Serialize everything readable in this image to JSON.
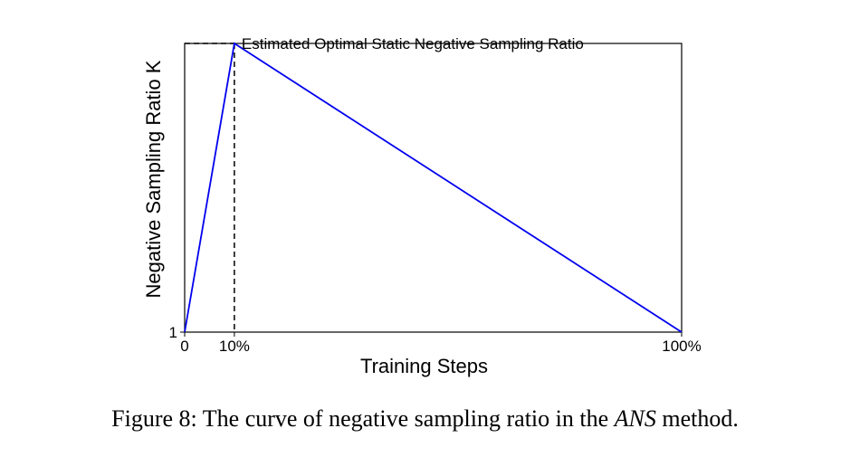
{
  "chart_data": {
    "type": "line",
    "title": "",
    "xlabel": "Training Steps",
    "ylabel": "Negative Sampling Ratio K",
    "x_ticks": [
      {
        "value": 0,
        "label": "0"
      },
      {
        "value": 10,
        "label": "10%"
      },
      {
        "value": 100,
        "label": "100%"
      }
    ],
    "y_ticks": [
      {
        "value": 1,
        "label": "1"
      }
    ],
    "xlim": [
      0,
      100
    ],
    "series": [
      {
        "color": "#0000ee",
        "points": [
          {
            "x": 0,
            "y": 1
          },
          {
            "x": 10,
            "y": 6.8
          },
          {
            "x": 100,
            "y": 1
          }
        ]
      }
    ],
    "annotations": [
      {
        "text": "Estimated Optimal Static Negative Sampling Ratio",
        "x": 10,
        "y": 6.8
      }
    ],
    "grid": false,
    "legend": "none"
  },
  "caption": {
    "prefix": "Figure 8: The curve of negative sampling ratio in the ",
    "emphasis": "ANS",
    "suffix": " method."
  }
}
